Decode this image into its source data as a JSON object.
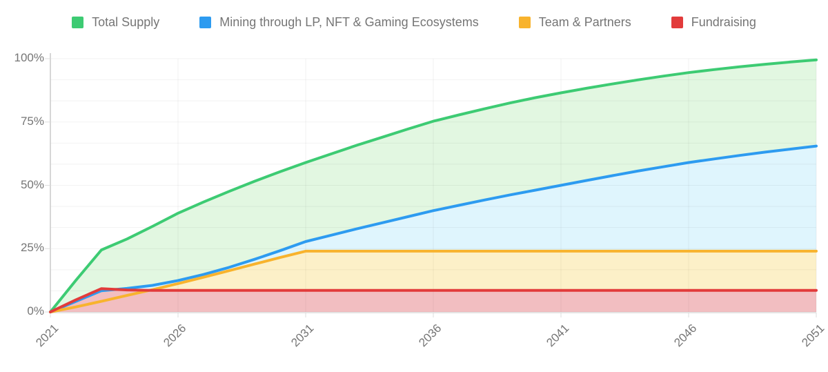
{
  "figure": {
    "background": "#ffffff",
    "grid_color": "rgba(0,0,0,0.05)",
    "axis_color": "#d6d6d6",
    "label_color": "#757575"
  },
  "legend": {
    "position": "top",
    "items": [
      {
        "id": "total-supply",
        "label": "Total Supply",
        "color": "#3DCB73"
      },
      {
        "id": "mining",
        "label": "Mining through LP, NFT & Gaming Ecosystems",
        "color": "#2D9BF0"
      },
      {
        "id": "team-partners",
        "label": "Team & Partners",
        "color": "#F8B32D"
      },
      {
        "id": "fundraising",
        "label": "Fundraising",
        "color": "#E23B3B"
      }
    ]
  },
  "chart_data": {
    "type": "area",
    "title": "",
    "xlabel": "",
    "ylabel": "",
    "x_range": [
      2021,
      2051
    ],
    "ylim": [
      0,
      100
    ],
    "grid": true,
    "legend_position": "top",
    "xticks": [
      2021,
      2026,
      2031,
      2036,
      2041,
      2046,
      2051
    ],
    "yticks": [
      "0%",
      "25%",
      "50%",
      "75%",
      "100%"
    ],
    "ytick_values": [
      0,
      25,
      50,
      75,
      100
    ],
    "x": [
      2021,
      2022,
      2023,
      2024,
      2025,
      2026,
      2027,
      2028,
      2029,
      2030,
      2031,
      2032,
      2033,
      2034,
      2035,
      2036,
      2037,
      2038,
      2039,
      2040,
      2041,
      2042,
      2043,
      2044,
      2045,
      2046,
      2047,
      2048,
      2049,
      2050,
      2051
    ],
    "series": [
      {
        "id": "total-supply",
        "name": "Total Supply",
        "color": "#3DCB73",
        "fill": "#E2F7E1",
        "values": [
          0,
          12.5,
          24.5,
          28.8,
          33.8,
          39,
          43.4,
          47.6,
          51.6,
          55.4,
          59,
          62.4,
          65.8,
          69,
          72.2,
          75.3,
          77.8,
          80.2,
          82.5,
          84.6,
          86.5,
          88.3,
          90,
          91.6,
          93.1,
          94.5,
          95.7,
          96.8,
          97.8,
          98.7,
          99.5
        ]
      },
      {
        "id": "mining",
        "name": "Mining through LP, NFT & Gaming Ecosystems",
        "color": "#2D9BF0",
        "fill": "#DFF5FD",
        "values": [
          0,
          4.2,
          8.4,
          9.3,
          10.5,
          12.4,
          14.8,
          17.6,
          20.8,
          24.2,
          27.8,
          30.3,
          32.8,
          35.2,
          37.6,
          40,
          42.1,
          44.2,
          46.2,
          48.1,
          50,
          51.9,
          53.8,
          55.6,
          57.3,
          59,
          60.4,
          61.8,
          63.1,
          64.3,
          65.5
        ]
      },
      {
        "id": "team-partners",
        "name": "Team & Partners",
        "color": "#F8B32D",
        "fill": "#FCF0C8",
        "values": [
          0,
          2,
          4.2,
          6.5,
          8.8,
          11.2,
          13.7,
          16.3,
          18.9,
          21.5,
          24,
          24,
          24,
          24,
          24,
          24,
          24,
          24,
          24,
          24,
          24,
          24,
          24,
          24,
          24,
          24,
          24,
          24,
          24,
          24,
          24
        ]
      },
      {
        "id": "fundraising",
        "name": "Fundraising",
        "color": "#E23B3B",
        "fill": "#F2BEC1",
        "values": [
          0,
          4.8,
          9.2,
          8.7,
          8.5,
          8.5,
          8.5,
          8.5,
          8.5,
          8.5,
          8.5,
          8.5,
          8.5,
          8.5,
          8.5,
          8.5,
          8.5,
          8.5,
          8.5,
          8.5,
          8.5,
          8.5,
          8.5,
          8.5,
          8.5,
          8.5,
          8.5,
          8.5,
          8.5,
          8.5,
          8.5
        ]
      }
    ]
  }
}
